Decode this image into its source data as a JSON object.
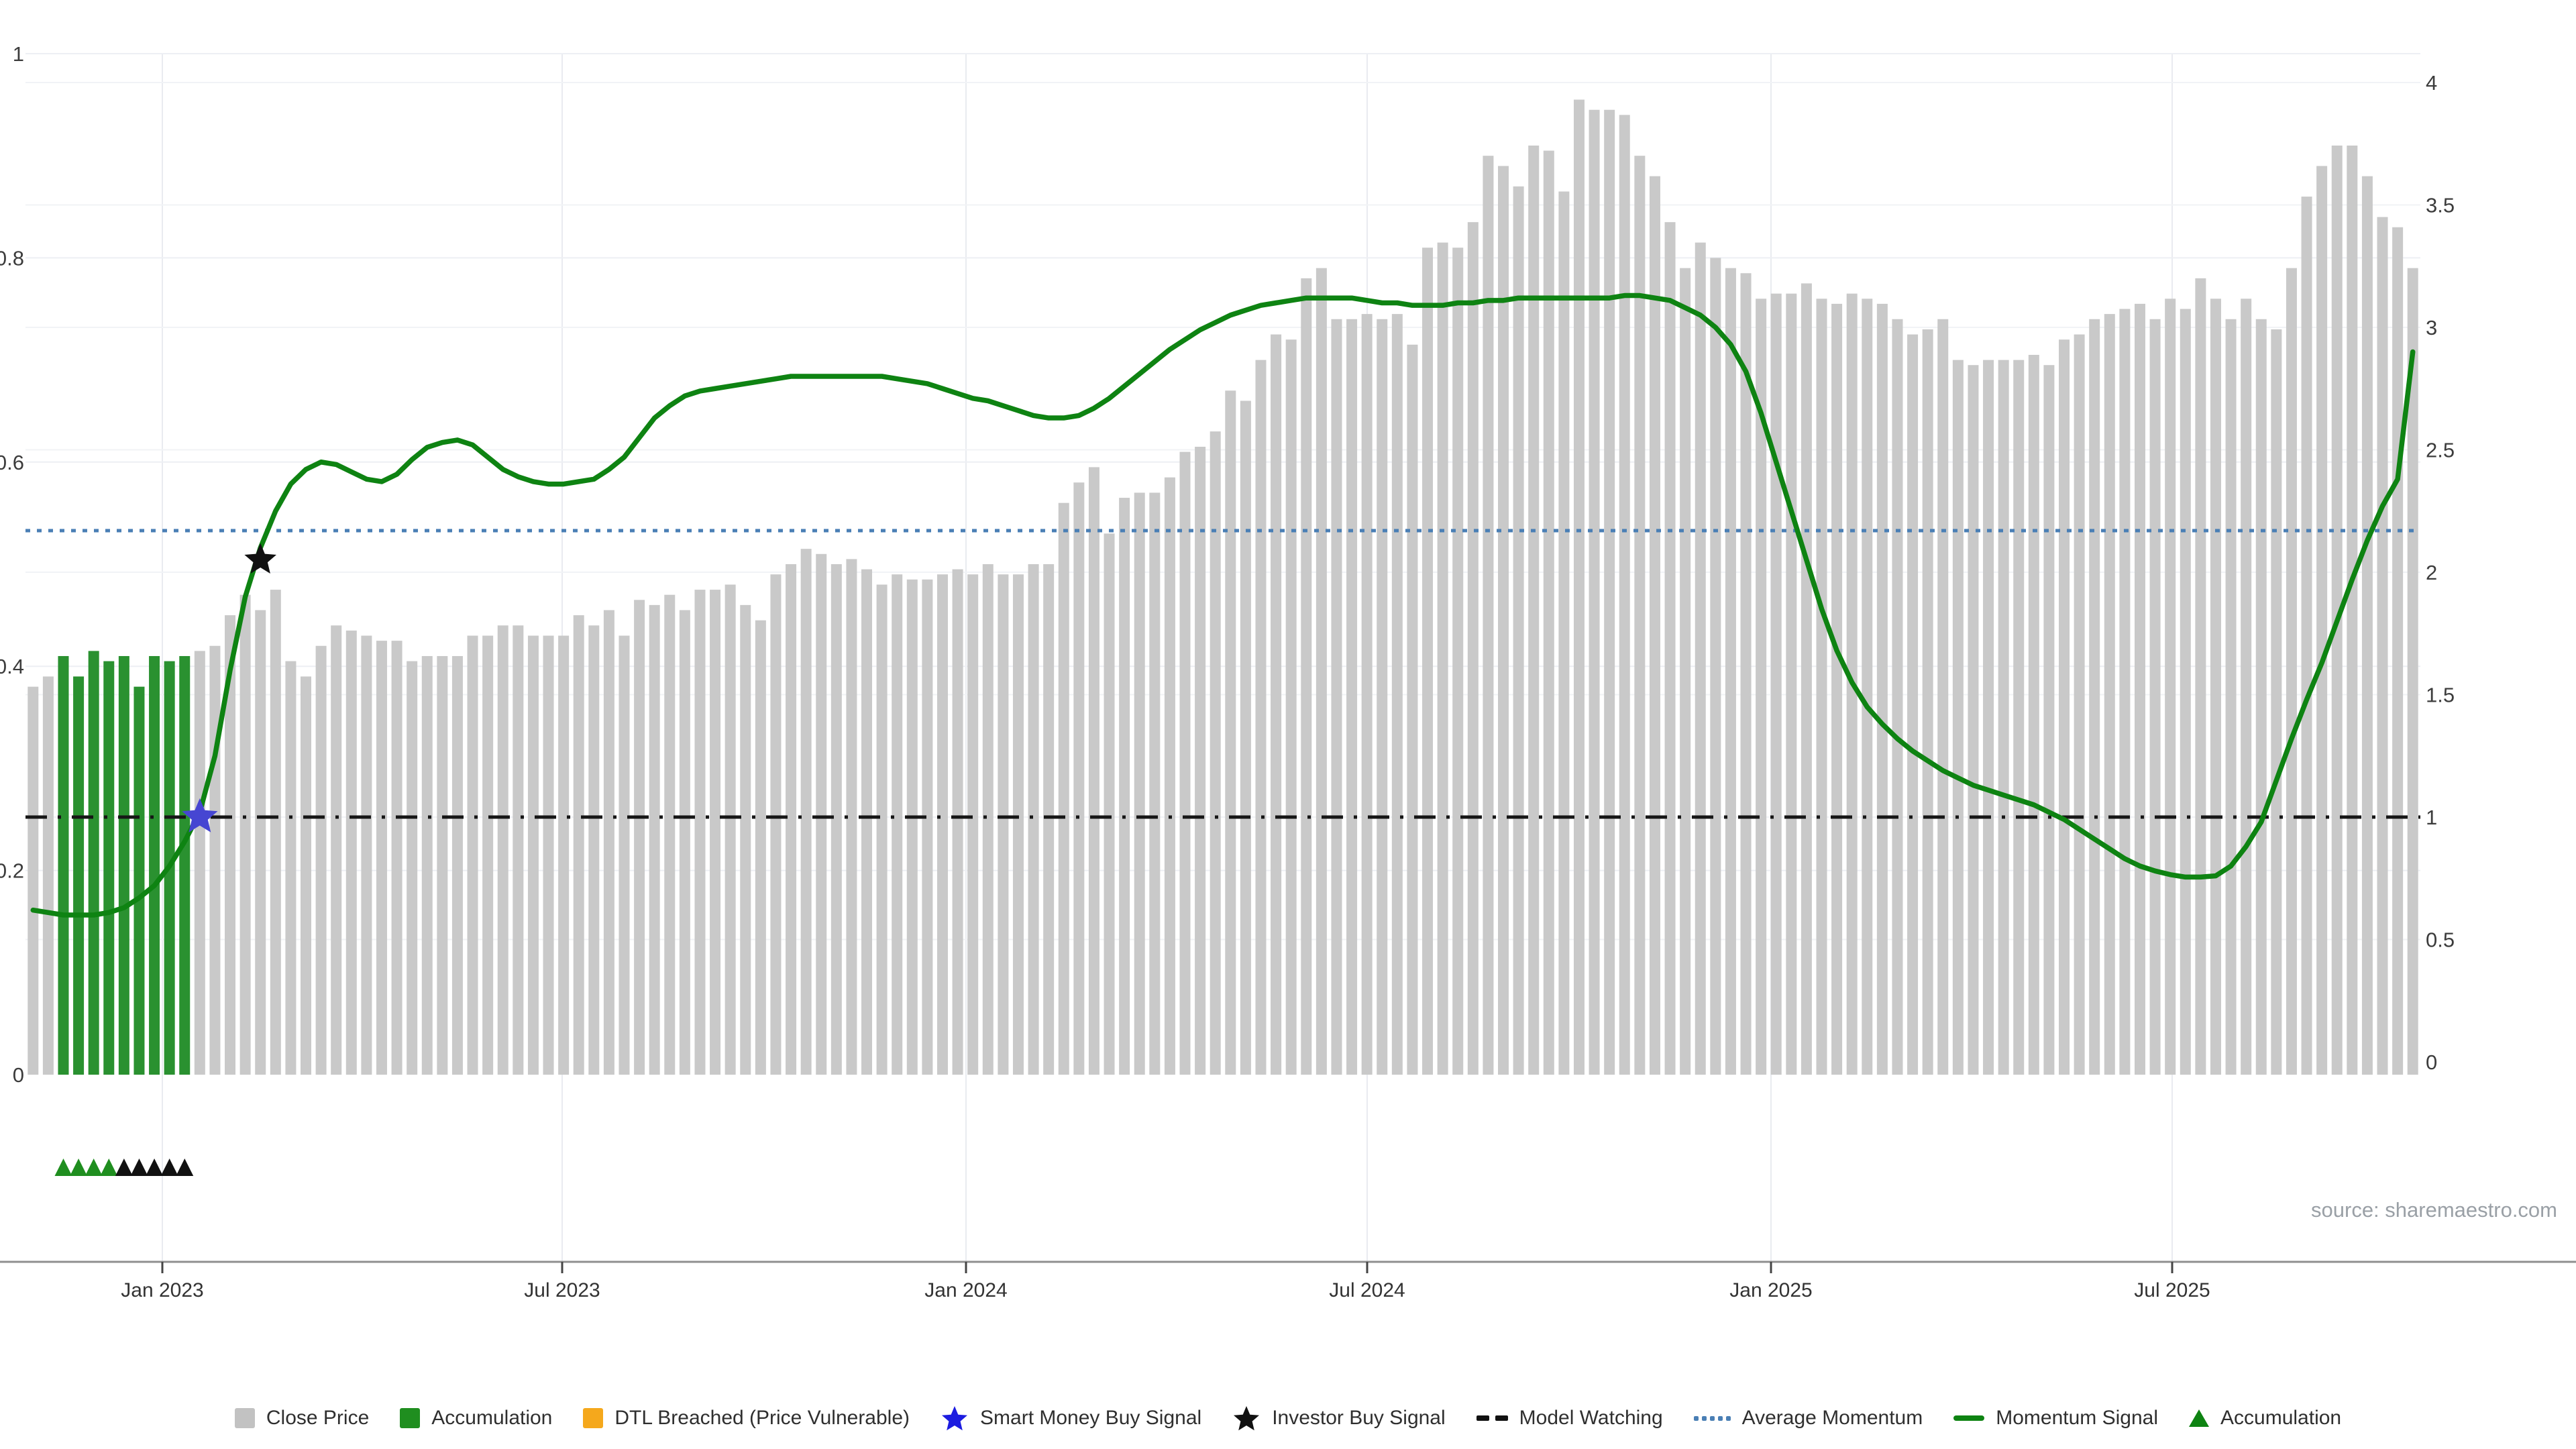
{
  "page": {
    "background": "#ffffff"
  },
  "source": {
    "text": "source: sharemaestro.com"
  },
  "legend": {
    "items": [
      {
        "id": "close-price",
        "label": "Close Price",
        "swatch": "square",
        "color": "#c2c2c2"
      },
      {
        "id": "accumulation",
        "label": "Accumulation",
        "swatch": "square",
        "color": "#1f8e1f"
      },
      {
        "id": "dtl-breached",
        "label": "DTL Breached (Price Vulnerable)",
        "swatch": "square",
        "color": "#f5a81c"
      },
      {
        "id": "smart-money-buy",
        "label": "Smart Money Buy Signal",
        "swatch": "star",
        "color": "#1c1ce0"
      },
      {
        "id": "investor-buy",
        "label": "Investor Buy Signal",
        "swatch": "star",
        "color": "#111111"
      },
      {
        "id": "model-watching",
        "label": "Model Watching",
        "swatch": "dashes",
        "color": "#111111"
      },
      {
        "id": "average-momentum",
        "label": "Average Momentum",
        "swatch": "dots",
        "color": "#4a7fb5"
      },
      {
        "id": "momentum-signal",
        "label": "Momentum Signal",
        "swatch": "line",
        "color": "#0e8312"
      },
      {
        "id": "accumulation-marker",
        "label": "Accumulation",
        "swatch": "triangle",
        "color": "#0e8312"
      }
    ]
  },
  "chart_data": {
    "type": "bar",
    "title": "",
    "xlabel": "",
    "ylabel": "",
    "x_ticks": [
      {
        "label": "Jan 2023",
        "x": 242
      },
      {
        "label": "Jul 2023",
        "x": 838
      },
      {
        "label": "Jan 2024",
        "x": 1440
      },
      {
        "label": "Jul 2024",
        "x": 2038
      },
      {
        "label": "Jan 2025",
        "x": 2640
      },
      {
        "label": "Jul 2025",
        "x": 3238
      }
    ],
    "left_axis": {
      "range": [
        0,
        1
      ],
      "ticks": [
        0,
        0.2,
        0.4,
        0.6,
        0.8,
        1
      ]
    },
    "right_axis": {
      "range": [
        0,
        4
      ],
      "ticks": [
        0,
        0.5,
        1,
        1.5,
        2,
        2.5,
        3,
        3.5,
        4
      ]
    },
    "series": [
      {
        "name": "Close Price",
        "type": "bar",
        "axis": "left",
        "color": "#c9c9c9",
        "accumulation_color": "#2a9130",
        "accumulation_bars_start": 3,
        "accumulation_bars_end": 11,
        "values": [
          0.38,
          0.39,
          0.41,
          0.39,
          0.415,
          0.405,
          0.41,
          0.38,
          0.41,
          0.405,
          0.41,
          0.415,
          0.42,
          0.45,
          0.47,
          0.455,
          0.475,
          0.405,
          0.39,
          0.42,
          0.44,
          0.435,
          0.43,
          0.425,
          0.425,
          0.405,
          0.41,
          0.41,
          0.41,
          0.43,
          0.43,
          0.44,
          0.44,
          0.43,
          0.43,
          0.43,
          0.45,
          0.44,
          0.455,
          0.43,
          0.465,
          0.46,
          0.47,
          0.455,
          0.475,
          0.475,
          0.48,
          0.46,
          0.445,
          0.49,
          0.5,
          0.515,
          0.51,
          0.5,
          0.505,
          0.495,
          0.48,
          0.49,
          0.485,
          0.485,
          0.49,
          0.495,
          0.49,
          0.5,
          0.49,
          0.49,
          0.5,
          0.5,
          0.56,
          0.58,
          0.595,
          0.53,
          0.565,
          0.57,
          0.57,
          0.585,
          0.61,
          0.615,
          0.63,
          0.67,
          0.66,
          0.7,
          0.725,
          0.72,
          0.78,
          0.79,
          0.74,
          0.74,
          0.745,
          0.74,
          0.745,
          0.715,
          0.81,
          0.815,
          0.81,
          0.835,
          0.9,
          0.89,
          0.87,
          0.91,
          0.905,
          0.865,
          0.955,
          0.945,
          0.945,
          0.94,
          0.9,
          0.88,
          0.835,
          0.79,
          0.815,
          0.8,
          0.79,
          0.785,
          0.76,
          0.765,
          0.765,
          0.775,
          0.76,
          0.755,
          0.765,
          0.76,
          0.755,
          0.74,
          0.725,
          0.73,
          0.74,
          0.7,
          0.695,
          0.7,
          0.7,
          0.7,
          0.705,
          0.695,
          0.72,
          0.725,
          0.74,
          0.745,
          0.75,
          0.755,
          0.74,
          0.76,
          0.75,
          0.78,
          0.76,
          0.74,
          0.76,
          0.74,
          0.73,
          0.79,
          0.86,
          0.89,
          0.91,
          0.91,
          0.88,
          0.84,
          0.83,
          0.79
        ]
      },
      {
        "name": "Momentum Signal",
        "type": "line",
        "axis": "right",
        "color": "#0e8312",
        "values": [
          0.62,
          0.61,
          0.6,
          0.6,
          0.6,
          0.61,
          0.63,
          0.67,
          0.72,
          0.8,
          0.9,
          1.02,
          1.25,
          1.6,
          1.9,
          2.1,
          2.25,
          2.36,
          2.42,
          2.45,
          2.44,
          2.41,
          2.38,
          2.37,
          2.4,
          2.46,
          2.51,
          2.53,
          2.54,
          2.52,
          2.47,
          2.42,
          2.39,
          2.37,
          2.36,
          2.36,
          2.37,
          2.38,
          2.42,
          2.47,
          2.55,
          2.63,
          2.68,
          2.72,
          2.74,
          2.75,
          2.76,
          2.77,
          2.78,
          2.79,
          2.8,
          2.8,
          2.8,
          2.8,
          2.8,
          2.8,
          2.8,
          2.79,
          2.78,
          2.77,
          2.75,
          2.73,
          2.71,
          2.7,
          2.68,
          2.66,
          2.64,
          2.63,
          2.63,
          2.64,
          2.67,
          2.71,
          2.76,
          2.81,
          2.86,
          2.91,
          2.95,
          2.99,
          3.02,
          3.05,
          3.07,
          3.09,
          3.1,
          3.11,
          3.12,
          3.12,
          3.12,
          3.12,
          3.11,
          3.1,
          3.1,
          3.09,
          3.09,
          3.09,
          3.1,
          3.1,
          3.11,
          3.11,
          3.12,
          3.12,
          3.12,
          3.12,
          3.12,
          3.12,
          3.12,
          3.13,
          3.13,
          3.12,
          3.11,
          3.08,
          3.05,
          3.0,
          2.93,
          2.82,
          2.65,
          2.45,
          2.25,
          2.05,
          1.85,
          1.68,
          1.55,
          1.45,
          1.38,
          1.32,
          1.27,
          1.23,
          1.19,
          1.16,
          1.13,
          1.11,
          1.09,
          1.07,
          1.05,
          1.02,
          0.99,
          0.95,
          0.91,
          0.87,
          0.83,
          0.8,
          0.78,
          0.765,
          0.755,
          0.755,
          0.76,
          0.8,
          0.88,
          0.98,
          1.15,
          1.32,
          1.48,
          1.63,
          1.8,
          1.97,
          2.13,
          2.27,
          2.38,
          2.9
        ]
      },
      {
        "name": "Average Momentum",
        "type": "hline",
        "axis": "right",
        "value": 2.17,
        "color": "#4a7fb5",
        "style": "dotted"
      },
      {
        "name": "Model Watching",
        "type": "hline",
        "axis": "right",
        "value": 1.0,
        "color": "#161616",
        "style": "dashed"
      }
    ],
    "signals": {
      "smart_money_buy": {
        "bar": 12,
        "value": 1.0,
        "color": "#4646d2"
      },
      "investor_buy": {
        "bar": 16,
        "value": 2.05,
        "color": "#111111"
      },
      "accumulation_triangles": {
        "bars": [
          3,
          4,
          5,
          6,
          7,
          8,
          9,
          10,
          11
        ],
        "colors": [
          "#1f8e1f",
          "#1f8e1f",
          "#1f8e1f",
          "#1f8e1f",
          "#111111",
          "#111111",
          "#111111",
          "#111111",
          "#111111"
        ]
      }
    },
    "grid": true,
    "legend_position": "bottom"
  }
}
